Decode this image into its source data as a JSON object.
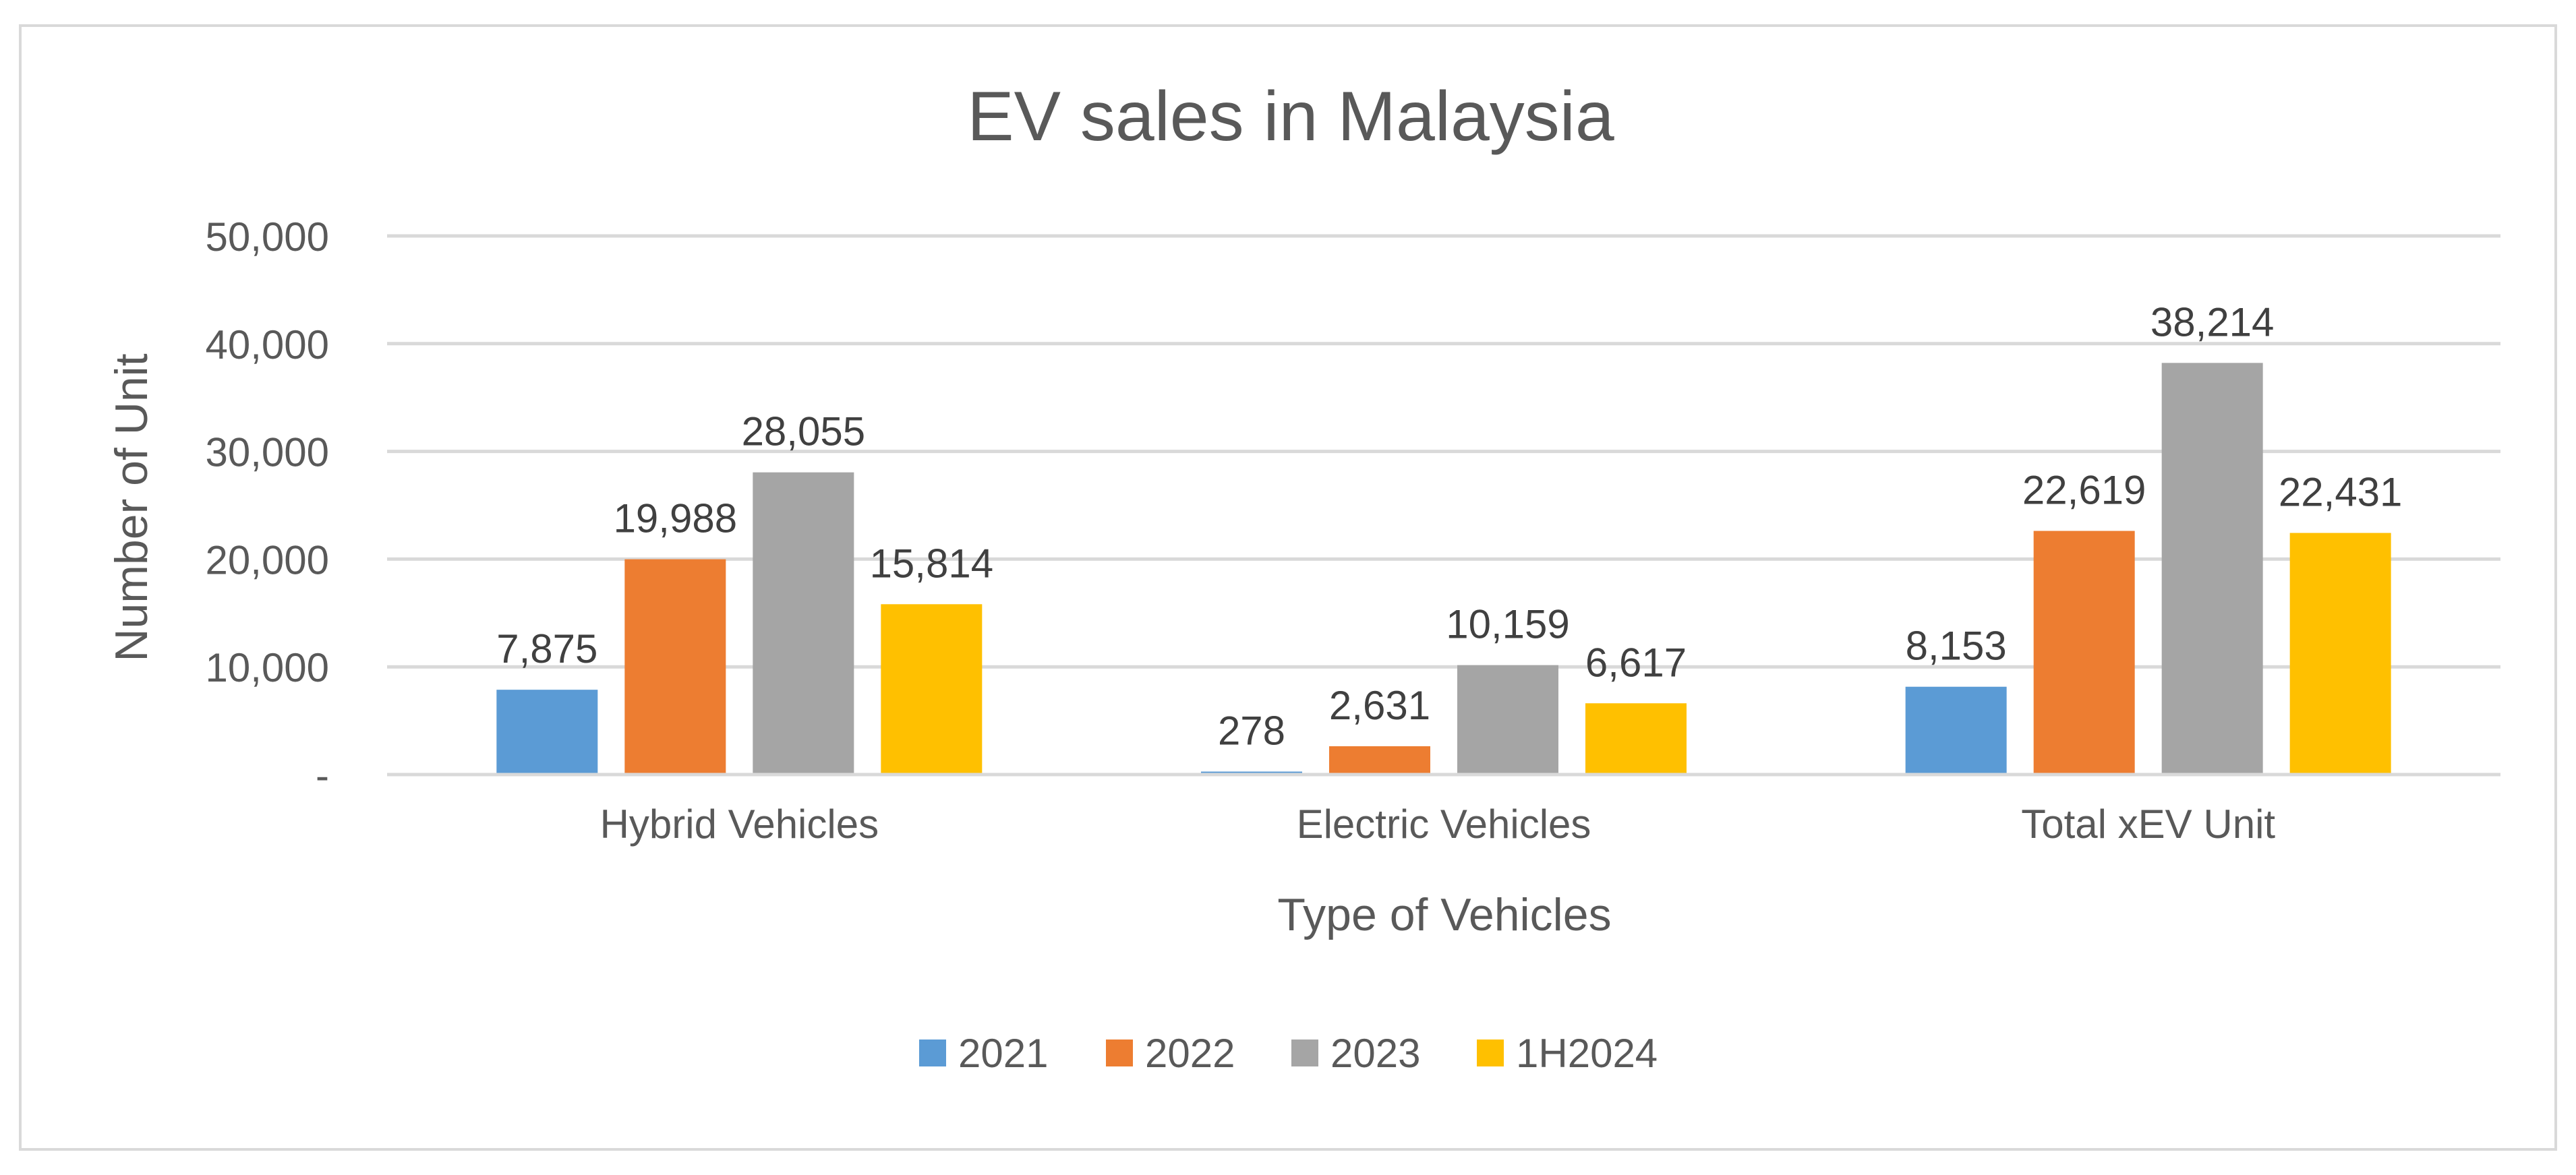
{
  "chart_data": {
    "type": "bar",
    "title": "EV sales in Malaysia",
    "xlabel": "Type of Vehicles",
    "ylabel": "Number of Unit",
    "categories": [
      "Hybrid Vehicles",
      "Electric Vehicles",
      "Total xEV Unit"
    ],
    "series": [
      {
        "name": "2021",
        "color": "#5b9bd5",
        "values": [
          7875,
          278,
          8153
        ],
        "labels": [
          "7,875",
          "278",
          "8,153"
        ]
      },
      {
        "name": "2022",
        "color": "#ed7d31",
        "values": [
          19988,
          2631,
          22619
        ],
        "labels": [
          "19,988",
          "2,631",
          "22,619"
        ]
      },
      {
        "name": "2023",
        "color": "#a5a5a5",
        "values": [
          28055,
          10159,
          38214
        ],
        "labels": [
          "28,055",
          "10,159",
          "38,214"
        ]
      },
      {
        "name": "1H2024",
        "color": "#ffc000",
        "values": [
          15814,
          6617,
          22431
        ],
        "labels": [
          "15,814",
          "6,617",
          "22,431"
        ]
      }
    ],
    "ylim": [
      0,
      50000
    ],
    "yticks": [
      0,
      10000,
      20000,
      30000,
      40000,
      50000
    ],
    "ytick_labels": [
      "-",
      "10,000",
      "20,000",
      "30,000",
      "40,000",
      "50,000"
    ],
    "grid": true,
    "legend": "bottom"
  }
}
